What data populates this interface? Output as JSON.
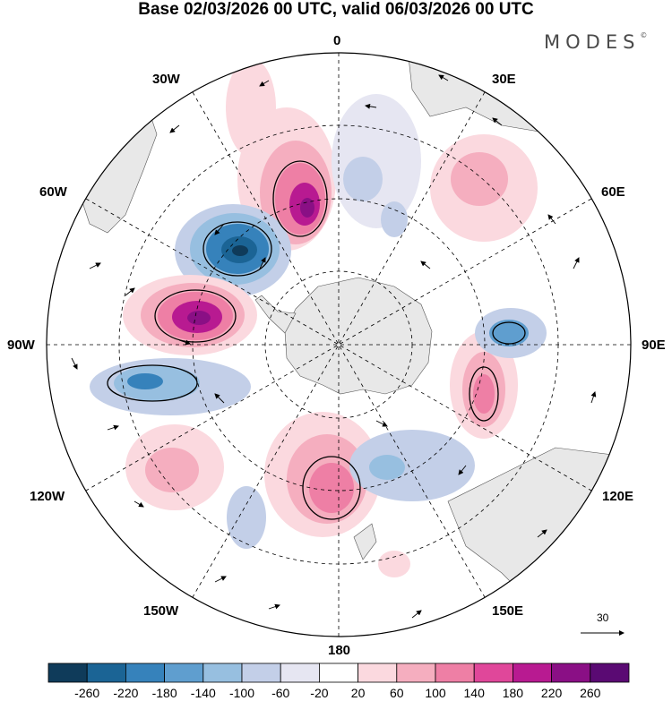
{
  "title": "Base 02/03/2026 00 UTC, valid 06/03/2026 00 UTC",
  "brand": "MODES",
  "brand_mark": "©",
  "longitude_labels": {
    "lon_0": "0",
    "lon_30e": "30E",
    "lon_60e": "60E",
    "lon_90e": "90E",
    "lon_120e": "120E",
    "lon_150e": "150E",
    "lon_180": "180",
    "lon_150w": "150W",
    "lon_120w": "120W",
    "lon_90w": "90W",
    "lon_60w": "60W",
    "lon_30w": "30W"
  },
  "reference_vector": "30",
  "colorbar": {
    "ticks": [
      "-260",
      "-220",
      "-180",
      "-140",
      "-100",
      "-60",
      "-20",
      "20",
      "60",
      "100",
      "140",
      "180",
      "220",
      "260"
    ],
    "colors": [
      "#0f3b5a",
      "#1b6495",
      "#3682bb",
      "#5f9ecf",
      "#97bfe0",
      "#c3cfe8",
      "#e6e6f2",
      "#ffffff",
      "#fbd9df",
      "#f5aebf",
      "#ee7fa5",
      "#e0479a",
      "#b81a91",
      "#8a0f85",
      "#5a0a73"
    ]
  },
  "anomaly_features": [
    {
      "id": "neg-south-atlantic",
      "value": -240
    },
    {
      "id": "pos-atlantic-sector",
      "value": 230
    },
    {
      "id": "pos-drake-passage",
      "value": 250
    },
    {
      "id": "neg-amundsen",
      "value": -160
    },
    {
      "id": "pos-south-pacific",
      "value": 90
    },
    {
      "id": "pos-ross-sea",
      "value": 110
    },
    {
      "id": "neg-indian-ocean",
      "value": -100
    },
    {
      "id": "pos-indian-ocean",
      "value": 130
    },
    {
      "id": "neg-australia-south",
      "value": -80
    },
    {
      "id": "pos-south-africa",
      "value": 60
    }
  ]
}
